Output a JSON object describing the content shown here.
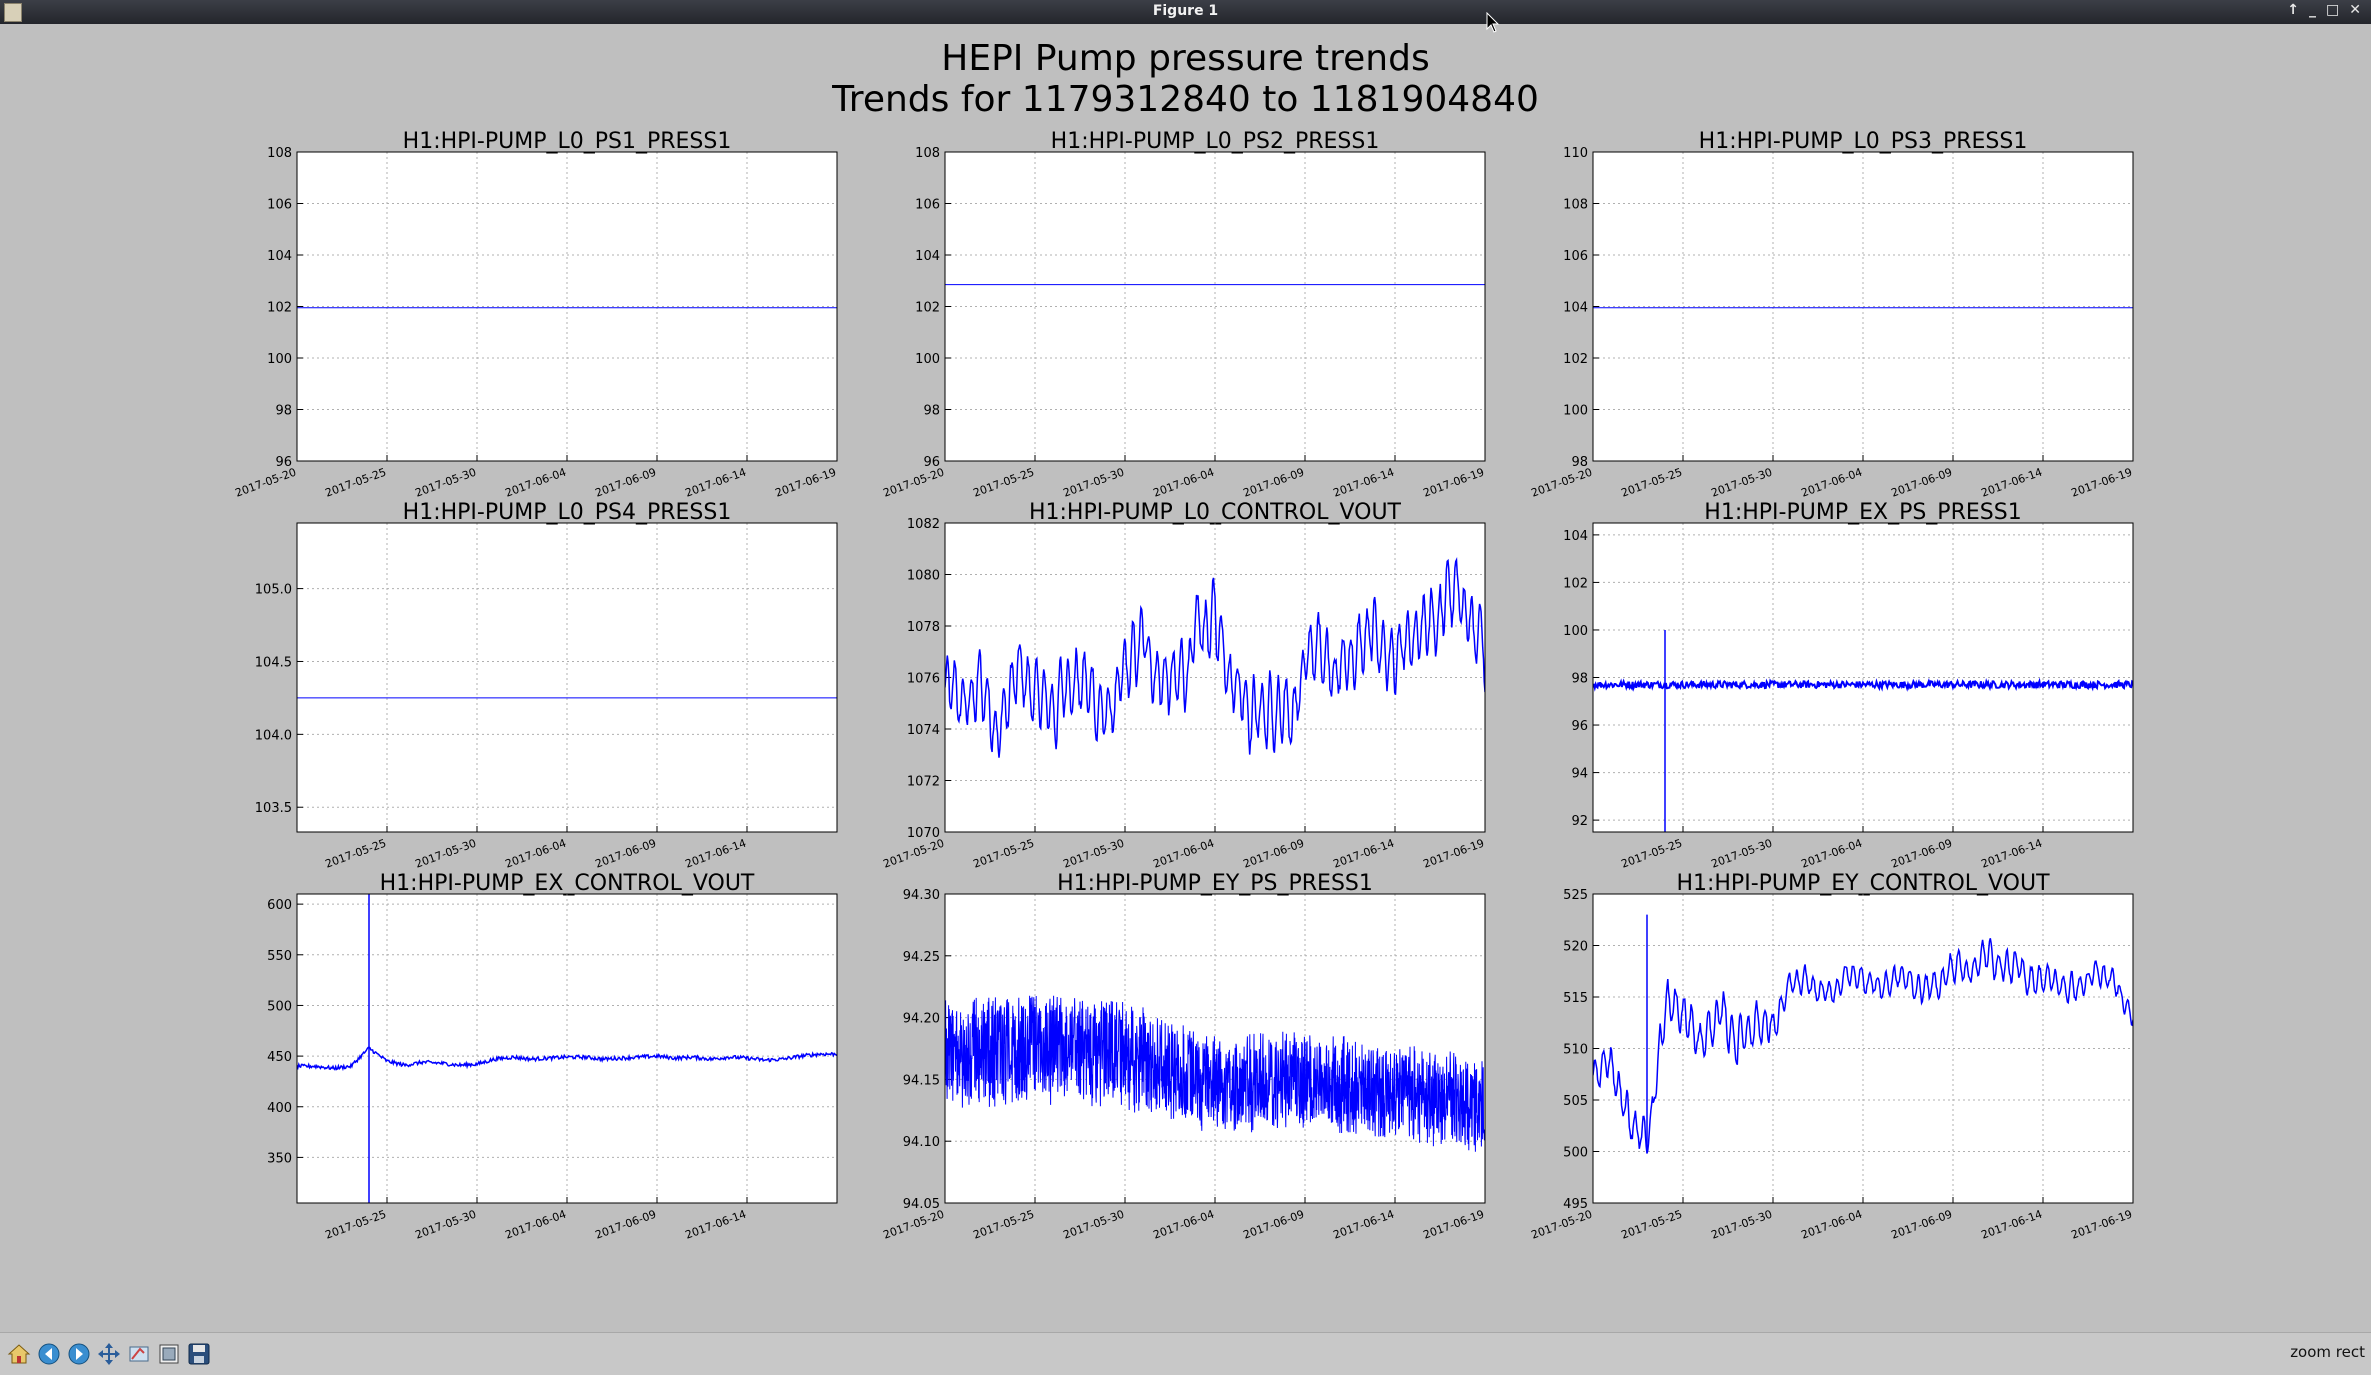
{
  "window": {
    "title": "Figure 1"
  },
  "figure": {
    "title_line1": "HEPI Pump pressure trends",
    "title_line2": "Trends for 1179312840 to 1181904840"
  },
  "toolbar": {
    "tools": [
      {
        "name": "home-icon"
      },
      {
        "name": "back-icon"
      },
      {
        "name": "forward-icon"
      },
      {
        "name": "pan-icon"
      },
      {
        "name": "zoom-icon"
      },
      {
        "name": "subplots-icon"
      },
      {
        "name": "save-icon"
      }
    ],
    "status": "zoom rect"
  },
  "colors": {
    "line": "#0000ff",
    "figure_bg": "#bfbfbf",
    "grid": "#b0b0b0"
  },
  "chart_data": [
    {
      "type": "line",
      "title": "H1:HPI-PUMP_L0_PS1_PRESS1",
      "ylim": [
        96,
        108
      ],
      "yticks": [
        "96",
        "98",
        "100",
        "102",
        "104",
        "106",
        "108"
      ],
      "xticks": [
        "2017-05-20",
        "2017-05-25",
        "2017-05-30",
        "2017-06-04",
        "2017-06-09",
        "2017-06-14",
        "2017-06-19"
      ],
      "xlim": [
        "2017-05-20",
        "2017-06-19"
      ],
      "grid": true,
      "series": [
        {
          "x": [
            "2017-05-20",
            "2017-06-19"
          ],
          "y": [
            101.95,
            101.95
          ]
        }
      ]
    },
    {
      "type": "line",
      "title": "H1:HPI-PUMP_L0_PS2_PRESS1",
      "ylim": [
        96,
        108
      ],
      "yticks": [
        "96",
        "98",
        "100",
        "102",
        "104",
        "106",
        "108"
      ],
      "xticks": [
        "2017-05-20",
        "2017-05-25",
        "2017-05-30",
        "2017-06-04",
        "2017-06-09",
        "2017-06-14",
        "2017-06-19"
      ],
      "xlim": [
        "2017-05-20",
        "2017-06-19"
      ],
      "grid": true,
      "series": [
        {
          "x": [
            "2017-05-20",
            "2017-06-19"
          ],
          "y": [
            102.85,
            102.85
          ]
        }
      ]
    },
    {
      "type": "line",
      "title": "H1:HPI-PUMP_L0_PS3_PRESS1",
      "ylim": [
        98,
        110
      ],
      "yticks": [
        "98",
        "100",
        "102",
        "104",
        "106",
        "108",
        "110"
      ],
      "xticks": [
        "2017-05-20",
        "2017-05-25",
        "2017-05-30",
        "2017-06-04",
        "2017-06-09",
        "2017-06-14",
        "2017-06-19"
      ],
      "xlim": [
        "2017-05-20",
        "2017-06-19"
      ],
      "grid": true,
      "series": [
        {
          "x": [
            "2017-05-20",
            "2017-06-19"
          ],
          "y": [
            103.95,
            103.95
          ]
        }
      ]
    },
    {
      "type": "line",
      "title": "H1:HPI-PUMP_L0_PS4_PRESS1",
      "ylim": [
        103.33,
        105.45
      ],
      "yticks": [
        "103.5",
        "104.0",
        "104.5",
        "105.0"
      ],
      "xticks": [
        "2017-05-25",
        "2017-05-30",
        "2017-06-04",
        "2017-06-09",
        "2017-06-14"
      ],
      "xlim": [
        "2017-05-20",
        "2017-06-19"
      ],
      "grid": true,
      "series": [
        {
          "x": [
            "2017-05-20",
            "2017-06-19"
          ],
          "y": [
            104.25,
            104.25
          ]
        }
      ]
    },
    {
      "type": "line",
      "title": "H1:HPI-PUMP_L0_CONTROL_VOUT",
      "ylim": [
        1070,
        1082
      ],
      "yticks": [
        "1070",
        "1072",
        "1074",
        "1076",
        "1078",
        "1080",
        "1082"
      ],
      "xticks": [
        "2017-05-20",
        "2017-05-25",
        "2017-05-30",
        "2017-06-04",
        "2017-06-09",
        "2017-06-14",
        "2017-06-19"
      ],
      "xlim": [
        "2017-05-20",
        "2017-06-19"
      ],
      "grid": true,
      "series": [
        {
          "x": [
            "2017-05-20",
            "2017-05-21",
            "2017-05-22",
            "2017-05-23",
            "2017-05-24",
            "2017-05-25",
            "2017-05-26",
            "2017-05-27",
            "2017-05-28",
            "2017-05-29",
            "2017-05-30",
            "2017-05-31",
            "2017-06-01",
            "2017-06-02",
            "2017-06-03",
            "2017-06-04",
            "2017-06-05",
            "2017-06-06",
            "2017-06-07",
            "2017-06-08",
            "2017-06-09",
            "2017-06-10",
            "2017-06-11",
            "2017-06-12",
            "2017-06-13",
            "2017-06-14",
            "2017-06-15",
            "2017-06-16",
            "2017-06-17",
            "2017-06-18",
            "2017-06-19"
          ],
          "y": [
            1075.5,
            1074.8,
            1075.6,
            1074.2,
            1076.0,
            1075.3,
            1074.6,
            1076.3,
            1075.5,
            1074.4,
            1075.8,
            1077.3,
            1076.1,
            1075.6,
            1077.4,
            1078.2,
            1076.4,
            1075.1,
            1074.6,
            1074.0,
            1076.6,
            1077.2,
            1076.4,
            1077.1,
            1077.5,
            1076.6,
            1076.9,
            1077.8,
            1079.3,
            1078.6,
            1076.2
          ],
          "amplitude": [
            1.5,
            1.5,
            1.6,
            1.5,
            1.6,
            1.6,
            1.5,
            1.6,
            1.6,
            1.5,
            1.5,
            1.6,
            1.5,
            1.6,
            1.6,
            1.7,
            1.6,
            1.6,
            1.7,
            1.7,
            1.5,
            1.5,
            1.6,
            1.5,
            1.6,
            1.5,
            1.5,
            1.6,
            1.6,
            1.5,
            1.6
          ]
        }
      ]
    },
    {
      "type": "line",
      "title": "H1:HPI-PUMP_EX_PS_PRESS1",
      "ylim": [
        91.5,
        104.5
      ],
      "yticks": [
        "92",
        "94",
        "96",
        "98",
        "100",
        "102",
        "104"
      ],
      "xticks": [
        "2017-05-25",
        "2017-05-30",
        "2017-06-04",
        "2017-06-09",
        "2017-06-14"
      ],
      "xlim": [
        "2017-05-20",
        "2017-06-19"
      ],
      "grid": true,
      "series": [
        {
          "x": [
            "2017-05-20",
            "2017-06-19"
          ],
          "y": [
            97.7,
            97.7
          ],
          "noise": 0.15
        }
      ],
      "spike": {
        "x": "2017-05-24",
        "ymin": 91.5,
        "ymax": 100.0
      }
    },
    {
      "type": "line",
      "title": "H1:HPI-PUMP_EX_CONTROL_VOUT",
      "ylim": [
        305,
        610
      ],
      "yticks": [
        "350",
        "400",
        "450",
        "500",
        "550",
        "600"
      ],
      "xticks": [
        "2017-05-25",
        "2017-05-30",
        "2017-06-04",
        "2017-06-09",
        "2017-06-14"
      ],
      "xlim": [
        "2017-05-20",
        "2017-06-19"
      ],
      "grid": true,
      "series": [
        {
          "x": [
            "2017-05-20",
            "2017-05-21",
            "2017-05-22",
            "2017-05-23",
            "2017-05-24",
            "2017-05-25",
            "2017-05-26",
            "2017-05-27",
            "2017-05-28",
            "2017-05-29",
            "2017-05-30",
            "2017-05-31",
            "2017-06-01",
            "2017-06-02",
            "2017-06-03",
            "2017-06-04",
            "2017-06-05",
            "2017-06-06",
            "2017-06-07",
            "2017-06-08",
            "2017-06-09",
            "2017-06-10",
            "2017-06-11",
            "2017-06-12",
            "2017-06-13",
            "2017-06-14",
            "2017-06-15",
            "2017-06-16",
            "2017-06-17",
            "2017-06-18",
            "2017-06-19"
          ],
          "y": [
            440,
            440,
            438,
            440,
            458,
            445,
            441,
            444,
            443,
            441,
            442,
            447,
            449,
            447,
            448,
            449,
            449,
            447,
            448,
            449,
            450,
            448,
            449,
            447,
            449,
            448,
            446,
            447,
            450,
            452,
            452
          ]
        }
      ],
      "spike": {
        "x": "2017-05-24",
        "ymin": 305,
        "ymax": 610
      }
    },
    {
      "type": "line",
      "title": "H1:HPI-PUMP_EY_PS_PRESS1",
      "ylim": [
        94.05,
        94.3
      ],
      "yticks": [
        "94.05",
        "94.10",
        "94.15",
        "94.20",
        "94.25",
        "94.30"
      ],
      "xticks": [
        "2017-05-20",
        "2017-05-25",
        "2017-05-30",
        "2017-06-04",
        "2017-06-09",
        "2017-06-14",
        "2017-06-19"
      ],
      "xlim": [
        "2017-05-20",
        "2017-06-19"
      ],
      "grid": true,
      "series": [
        {
          "x": [
            "2017-05-20",
            "2017-05-25",
            "2017-05-30",
            "2017-06-04",
            "2017-06-09",
            "2017-06-14",
            "2017-06-19"
          ],
          "y": [
            94.17,
            94.175,
            94.17,
            94.145,
            94.15,
            94.14,
            94.13
          ],
          "band": [
            0.045,
            0.045,
            0.045,
            0.04,
            0.04,
            0.04,
            0.04
          ]
        }
      ]
    },
    {
      "type": "line",
      "title": "H1:HPI-PUMP_EY_CONTROL_VOUT",
      "ylim": [
        495,
        525
      ],
      "yticks": [
        "495",
        "500",
        "505",
        "510",
        "515",
        "520",
        "525"
      ],
      "xticks": [
        "2017-05-20",
        "2017-05-25",
        "2017-05-30",
        "2017-06-04",
        "2017-06-09",
        "2017-06-14",
        "2017-06-19"
      ],
      "xlim": [
        "2017-05-20",
        "2017-06-19"
      ],
      "grid": true,
      "series": [
        {
          "x": [
            "2017-05-20",
            "2017-05-21",
            "2017-05-22",
            "2017-05-23",
            "2017-05-24",
            "2017-05-25",
            "2017-05-26",
            "2017-05-27",
            "2017-05-28",
            "2017-05-29",
            "2017-05-30",
            "2017-05-31",
            "2017-06-01",
            "2017-06-02",
            "2017-06-03",
            "2017-06-04",
            "2017-06-05",
            "2017-06-06",
            "2017-06-07",
            "2017-06-08",
            "2017-06-09",
            "2017-06-10",
            "2017-06-11",
            "2017-06-12",
            "2017-06-13",
            "2017-06-14",
            "2017-06-15",
            "2017-06-16",
            "2017-06-17",
            "2017-06-18",
            "2017-06-19"
          ],
          "y": [
            507,
            509,
            503,
            501,
            514,
            513,
            511,
            513,
            511,
            513,
            512,
            516,
            516,
            515,
            517,
            517,
            516,
            517,
            516,
            516,
            518,
            518,
            519,
            518,
            517,
            517,
            516,
            516,
            517,
            516,
            514
          ],
          "amplitude": [
            2,
            2,
            2.5,
            2,
            3,
            2.5,
            2.5,
            2.5,
            2.5,
            2.5,
            2,
            1.5,
            1.5,
            1.5,
            1.5,
            1.5,
            1.5,
            1.5,
            1.5,
            1.5,
            1.8,
            1.8,
            1.8,
            1.8,
            1.8,
            1.5,
            1.5,
            1.5,
            1.5,
            1.5,
            1.5
          ]
        }
      ],
      "spike": {
        "x": "2017-05-23",
        "ymin": 500,
        "ymax": 523
      }
    }
  ]
}
